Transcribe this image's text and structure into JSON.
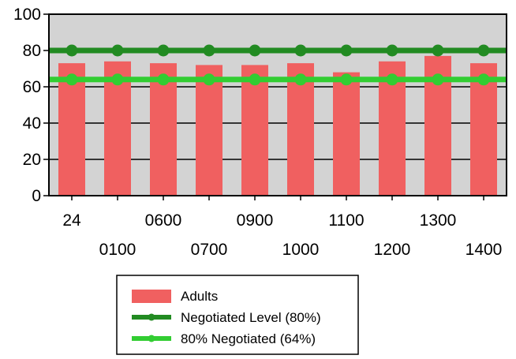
{
  "chart_data": {
    "type": "bar",
    "categories": [
      "24",
      "0100",
      "0600",
      "0700",
      "0900",
      "1000",
      "1100",
      "1200",
      "1300",
      "1400"
    ],
    "ylim": [
      0,
      100
    ],
    "yticks": [
      0,
      20,
      40,
      60,
      80,
      100
    ],
    "grid": true,
    "legend_position": "bottom",
    "series": [
      {
        "name": "Adults",
        "kind": "bar",
        "color": "#f06060",
        "values": [
          73,
          74,
          73,
          72,
          72,
          73,
          68,
          74,
          77,
          73
        ]
      },
      {
        "name": "Negotiated Level (80%)",
        "kind": "line",
        "color": "#228b22",
        "values": [
          80,
          80,
          80,
          80,
          80,
          80,
          80,
          80,
          80,
          80
        ]
      },
      {
        "name": "80% Negotiated (64%)",
        "kind": "line",
        "color": "#32cd32",
        "values": [
          64,
          64,
          64,
          64,
          64,
          64,
          64,
          64,
          64,
          64
        ]
      }
    ],
    "plot_background": "#d3d3d3"
  }
}
